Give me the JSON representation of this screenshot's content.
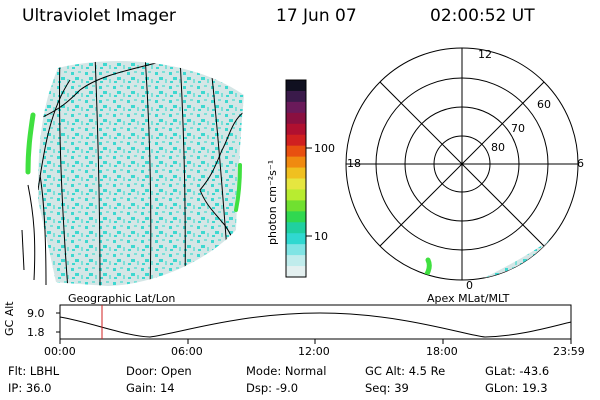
{
  "header": {
    "instrument": "Ultraviolet Imager",
    "date": "17 Jun 07",
    "time": "02:00:52 UT"
  },
  "colorbar": {
    "unit_label": "photon cm⁻²s⁻¹",
    "ticks": [
      "100",
      "10"
    ],
    "colors": [
      "#101020",
      "#3a1a4a",
      "#6a1a5a",
      "#8a1040",
      "#b01030",
      "#d02020",
      "#e85010",
      "#f08a10",
      "#f0c020",
      "#e6e640",
      "#b8ec30",
      "#70e030",
      "#30d850",
      "#20d0a0",
      "#30d8d0",
      "#80e4e4",
      "#c0ecec",
      "#e4f0f0"
    ]
  },
  "left_panel": {
    "label": "Geographic Lat/Lon",
    "colors": {
      "fill_a": "#d4e6e6",
      "fill_b": "#3ed8d0",
      "fill_c": "#7ce0d8",
      "aurora": "#40e040"
    }
  },
  "right_panel": {
    "label": "Apex MLat/MLT",
    "mlt_labels": [
      "12",
      "18",
      "6",
      "0"
    ],
    "mlat_labels": [
      "60",
      "70",
      "80"
    ]
  },
  "timeline": {
    "y_label": "GC Alt",
    "y_ticks": [
      "9.0",
      "1.8"
    ],
    "x_ticks": [
      "00:00",
      "06:00",
      "12:00",
      "18:00",
      "23:59"
    ],
    "marker_color": "#d02020"
  },
  "info_rows": [
    [
      {
        "label": "Flt:",
        "value": "LBHL"
      },
      {
        "label": "Door:",
        "value": "Open"
      },
      {
        "label": "Mode:",
        "value": "Normal"
      },
      {
        "label": "GC Alt:",
        "value": "4.5 Re"
      },
      {
        "label": "GLat:",
        "value": "-43.6"
      }
    ],
    [
      {
        "label": "IP:",
        "value": "36.0"
      },
      {
        "label": "Gain:",
        "value": "14"
      },
      {
        "label": "Dsp:",
        "value": "-9.0"
      },
      {
        "label": "Seq:",
        "value": "39"
      },
      {
        "label": "GLon:",
        "value": "19.3"
      }
    ]
  ]
}
